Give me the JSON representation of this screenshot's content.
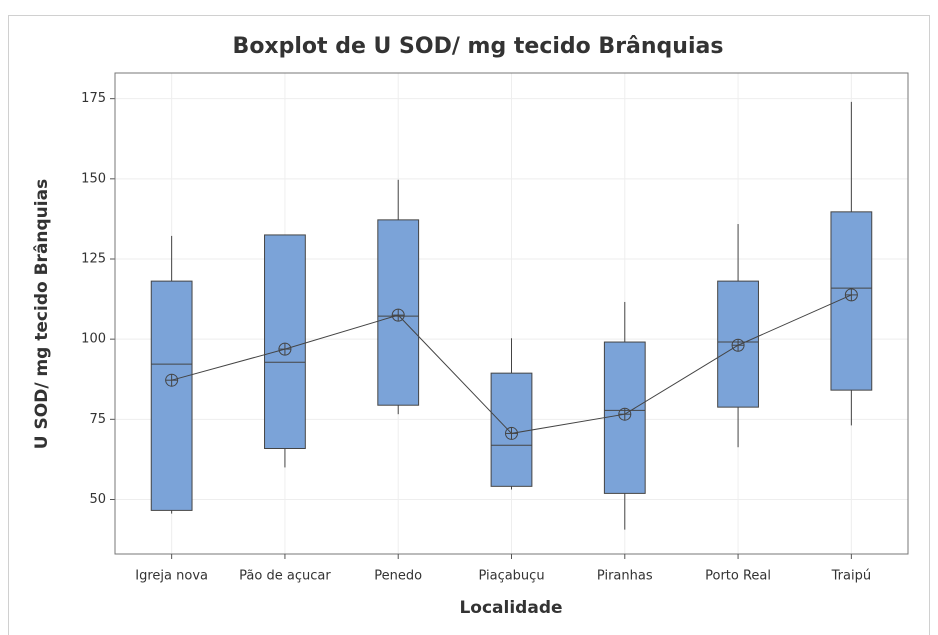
{
  "chart_data": {
    "type": "box",
    "title": "Boxplot de U SOD/ mg tecido Brânquias",
    "x_label": "Localidade",
    "y_label": "U SOD/ mg tecido Brânquias",
    "categories": [
      "Igreja nova",
      "Pão de açucar",
      "Penedo",
      "Piaçabuçu",
      "Piranhas",
      "Porto Real",
      "Traipú"
    ],
    "min": [
      45.6,
      60,
      76.6,
      53.1,
      40.6,
      66.3,
      73.1
    ],
    "q1": [
      46.6,
      65.9,
      79.4,
      54.1,
      51.9,
      78.8,
      84.1
    ],
    "median": [
      92.2,
      92.8,
      107.2,
      66.9,
      77.8,
      99.1,
      115.9
    ],
    "q3": [
      118.1,
      132.5,
      137.2,
      89.4,
      99.1,
      118.1,
      139.7
    ],
    "max": [
      132.2,
      132.5,
      149.7,
      100.3,
      111.6,
      135.9,
      174
    ],
    "mean": [
      87.2,
      96.9,
      107.5,
      70.6,
      76.6,
      98.1,
      113.8
    ],
    "color": "#7ba3d8",
    "ylim": [
      33,
      183
    ],
    "yticks": [
      50,
      75,
      100,
      125,
      150,
      175
    ],
    "grid": true
  }
}
